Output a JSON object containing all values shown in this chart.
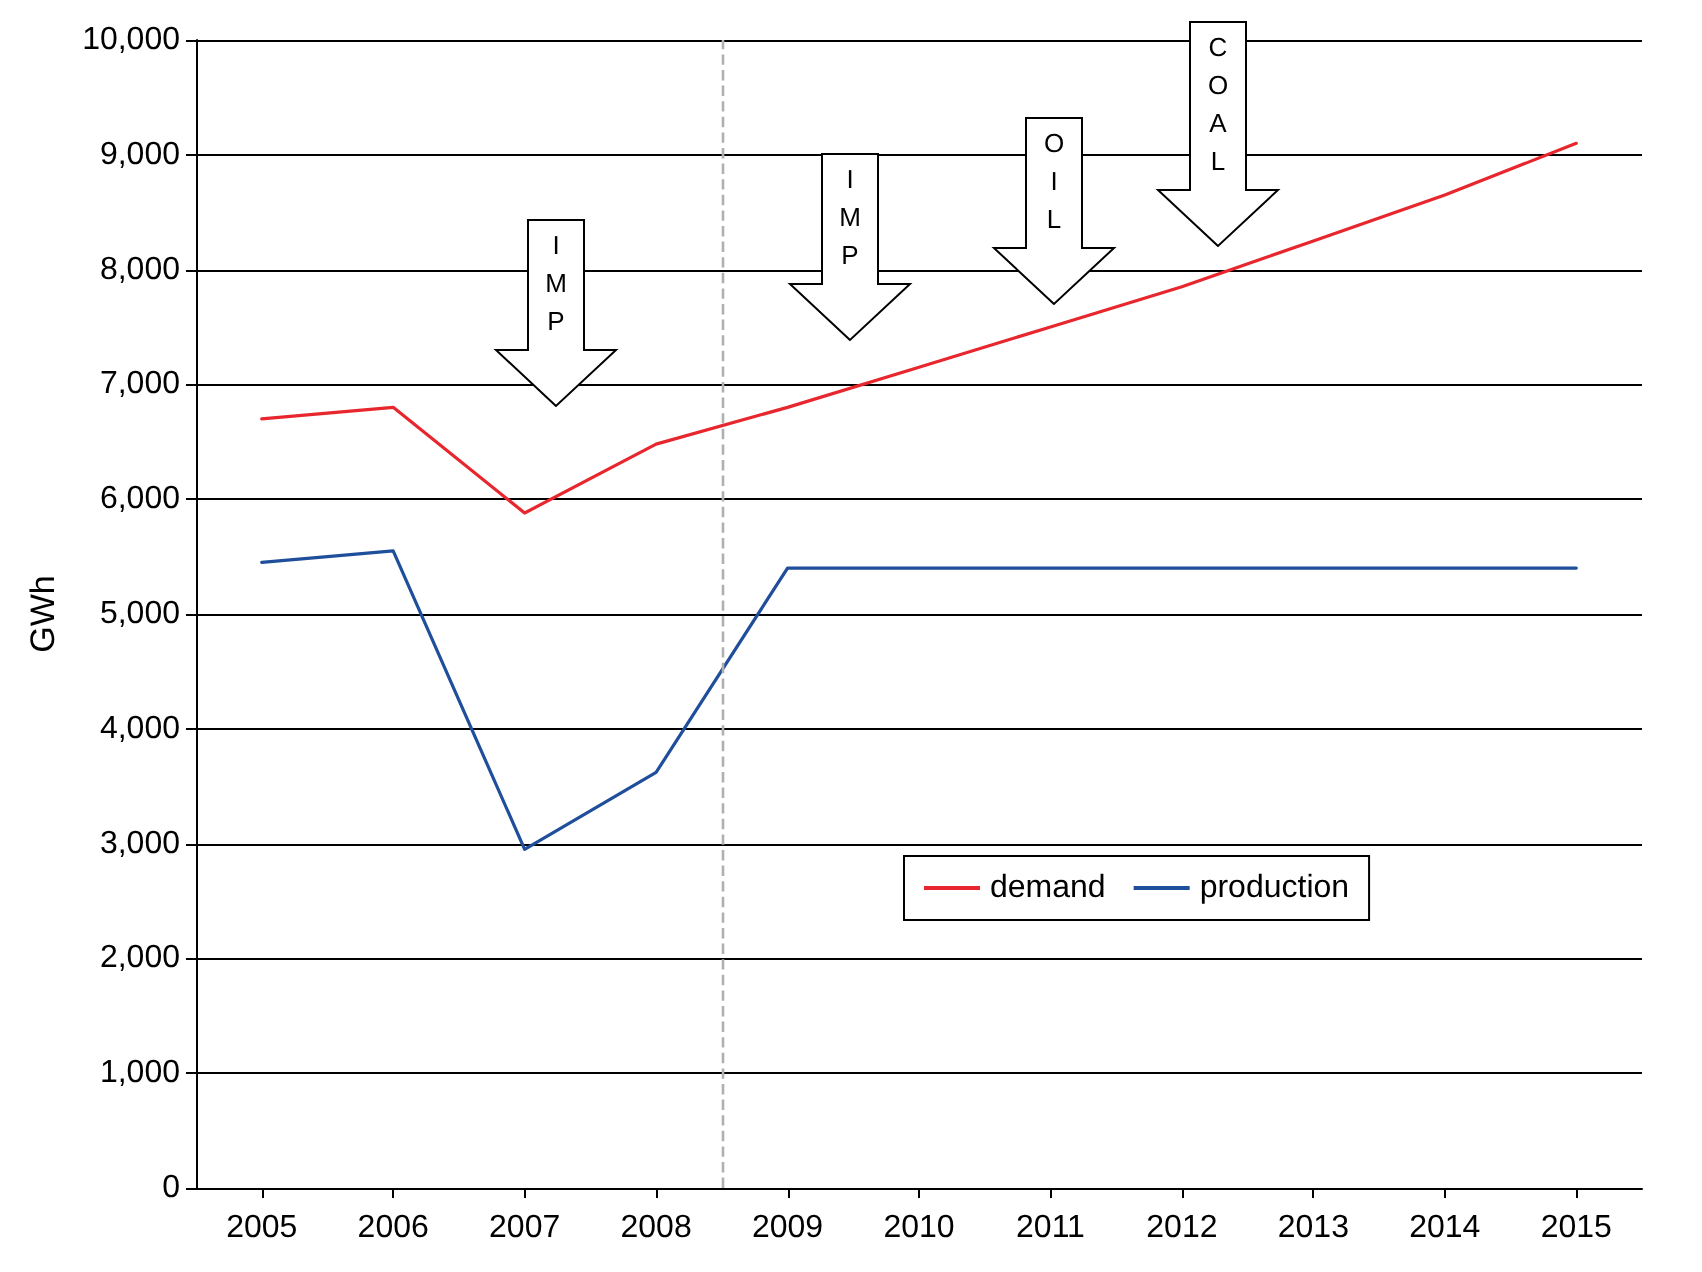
{
  "chart_data": {
    "type": "line",
    "ylabel": "GWh",
    "x": [
      2005,
      2006,
      2007,
      2008,
      2009,
      2010,
      2011,
      2012,
      2013,
      2014,
      2015
    ],
    "xlim": [
      2004.5,
      2015.5
    ],
    "xticks": [
      2005,
      2006,
      2007,
      2008,
      2009,
      2010,
      2011,
      2012,
      2013,
      2014,
      2015
    ],
    "ylim": [
      0,
      10000
    ],
    "yticks": [
      {
        "value": 0,
        "label": "0"
      },
      {
        "value": 1000,
        "label": "1,000"
      },
      {
        "value": 2000,
        "label": "2,000"
      },
      {
        "value": 3000,
        "label": "3,000"
      },
      {
        "value": 4000,
        "label": "4,000"
      },
      {
        "value": 5000,
        "label": "5,000"
      },
      {
        "value": 6000,
        "label": "6,000"
      },
      {
        "value": 7000,
        "label": "7,000"
      },
      {
        "value": 8000,
        "label": "8,000"
      },
      {
        "value": 9000,
        "label": "9,000"
      },
      {
        "value": 10000,
        "label": "10,000"
      }
    ],
    "series": [
      {
        "name": "demand",
        "color": "#e8262d",
        "values": [
          6700,
          6800,
          5880,
          6480,
          6800,
          7150,
          7500,
          7850,
          8250,
          8650,
          9100
        ]
      },
      {
        "name": "production",
        "color": "#1f4e9b",
        "values": [
          5450,
          5550,
          2950,
          3620,
          5400,
          5400,
          5400,
          5400,
          5400,
          5400,
          5400
        ]
      }
    ],
    "ref_lines": [
      {
        "axis": "x",
        "value": 2008.5,
        "color": "#b0b0b0",
        "line_style": "dashed"
      }
    ],
    "annotations": [
      "IMP",
      "IMP",
      "OIL",
      "COAL"
    ],
    "grid": "y",
    "legend": "bottom right",
    "marker": "none",
    "line_style": "solid"
  }
}
